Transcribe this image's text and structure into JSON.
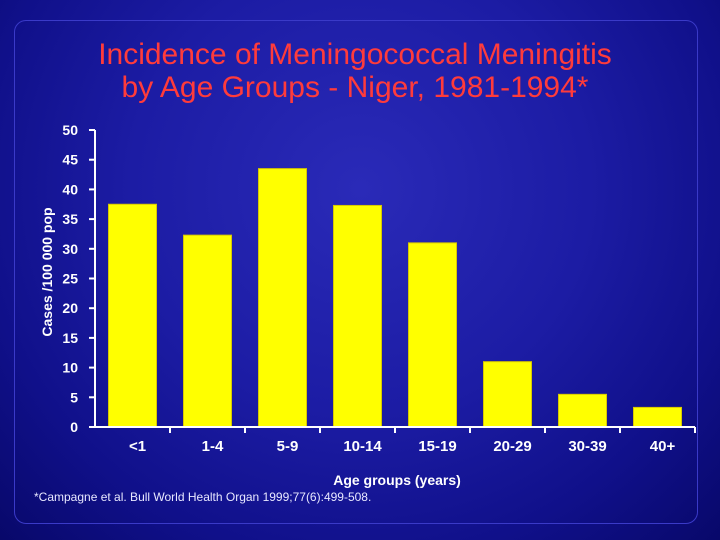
{
  "title_lines": [
    "Incidence of Meningococcal Meningitis",
    "by Age Groups - Niger, 1981-1994*"
  ],
  "citation": "*Campagne et al. Bull World Health Organ 1999;77(6):499-508.",
  "colors": {
    "bar": "#ffff00",
    "bar_edge": "#d8c800",
    "axis": "#ffffff",
    "title": "#ff3b3b"
  },
  "chart_data": {
    "type": "bar",
    "title": "Incidence of Meningococcal Meningitis by Age Groups - Niger, 1981-1994*",
    "xlabel": "Age groups (years)",
    "ylabel": "Cases /100 000 pop",
    "categories": [
      "<1",
      "1-4",
      "5-9",
      "10-14",
      "15-19",
      "20-29",
      "30-39",
      "40+"
    ],
    "values": [
      37.5,
      32.3,
      43.5,
      37.3,
      31.0,
      11.0,
      5.5,
      3.3
    ],
    "ylim": [
      0,
      50
    ],
    "yticks": [
      0,
      5,
      10,
      15,
      20,
      25,
      30,
      35,
      40,
      45,
      50
    ],
    "grid": false,
    "legend": "none"
  }
}
